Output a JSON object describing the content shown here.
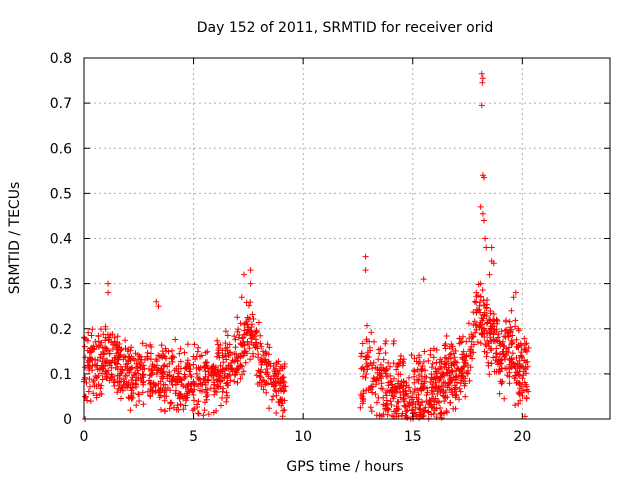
{
  "chart_data": {
    "type": "scatter",
    "title": "Day 152 of 2011, SRMTID for receiver orid",
    "xlabel": "GPS time / hours",
    "ylabel": "SRMTID / TECUs",
    "xlim": [
      0,
      24
    ],
    "ylim": [
      0,
      0.8
    ],
    "xticks": [
      "0",
      "5",
      "10",
      "15",
      "20"
    ],
    "yticks": [
      "0",
      "0.1",
      "0.2",
      "0.3",
      "0.4",
      "0.5",
      "0.6",
      "0.7",
      "0.8"
    ],
    "grid": true,
    "marker": "plus",
    "color": "#ff0000",
    "segments": [
      {
        "x_range": [
          0.0,
          9.2
        ],
        "baseline": [
          [
            0.0,
            0.13
          ],
          [
            0.5,
            0.12
          ],
          [
            1.0,
            0.14
          ],
          [
            1.5,
            0.13
          ],
          [
            2.0,
            0.1
          ],
          [
            3.0,
            0.1
          ],
          [
            4.0,
            0.09
          ],
          [
            5.0,
            0.08
          ],
          [
            6.0,
            0.09
          ],
          [
            7.0,
            0.13
          ],
          [
            7.5,
            0.2
          ],
          [
            8.0,
            0.14
          ],
          [
            8.5,
            0.1
          ],
          [
            9.0,
            0.06
          ]
        ],
        "spread": 0.045,
        "count": 900
      },
      {
        "x_range": [
          12.6,
          20.3
        ],
        "baseline": [
          [
            12.6,
            0.1
          ],
          [
            13.0,
            0.12
          ],
          [
            13.5,
            0.08
          ],
          [
            14.0,
            0.07
          ],
          [
            15.0,
            0.05
          ],
          [
            16.0,
            0.07
          ],
          [
            17.0,
            0.09
          ],
          [
            17.5,
            0.14
          ],
          [
            18.0,
            0.22
          ],
          [
            18.5,
            0.2
          ],
          [
            19.0,
            0.14
          ],
          [
            19.5,
            0.16
          ],
          [
            20.0,
            0.1
          ]
        ],
        "spread": 0.05,
        "count": 820
      }
    ],
    "highlights": [
      {
        "x": 0.05,
        "y": 0.0
      },
      {
        "x": 1.1,
        "y": 0.3
      },
      {
        "x": 1.1,
        "y": 0.28
      },
      {
        "x": 3.3,
        "y": 0.26
      },
      {
        "x": 3.4,
        "y": 0.25
      },
      {
        "x": 7.3,
        "y": 0.32
      },
      {
        "x": 7.6,
        "y": 0.33
      },
      {
        "x": 7.6,
        "y": 0.3
      },
      {
        "x": 7.2,
        "y": 0.27
      },
      {
        "x": 12.85,
        "y": 0.36
      },
      {
        "x": 12.85,
        "y": 0.33
      },
      {
        "x": 15.5,
        "y": 0.31
      },
      {
        "x": 18.15,
        "y": 0.765
      },
      {
        "x": 18.2,
        "y": 0.755
      },
      {
        "x": 18.18,
        "y": 0.745
      },
      {
        "x": 18.15,
        "y": 0.695
      },
      {
        "x": 18.2,
        "y": 0.54
      },
      {
        "x": 18.25,
        "y": 0.535
      },
      {
        "x": 18.1,
        "y": 0.47
      },
      {
        "x": 18.2,
        "y": 0.455
      },
      {
        "x": 18.25,
        "y": 0.44
      },
      {
        "x": 18.3,
        "y": 0.4
      },
      {
        "x": 18.35,
        "y": 0.38
      },
      {
        "x": 18.6,
        "y": 0.38
      },
      {
        "x": 18.6,
        "y": 0.35
      },
      {
        "x": 18.7,
        "y": 0.345
      },
      {
        "x": 18.5,
        "y": 0.32
      },
      {
        "x": 18.1,
        "y": 0.3
      },
      {
        "x": 17.9,
        "y": 0.28
      },
      {
        "x": 19.6,
        "y": 0.27
      },
      {
        "x": 19.7,
        "y": 0.28
      },
      {
        "x": 19.5,
        "y": 0.24
      }
    ]
  }
}
